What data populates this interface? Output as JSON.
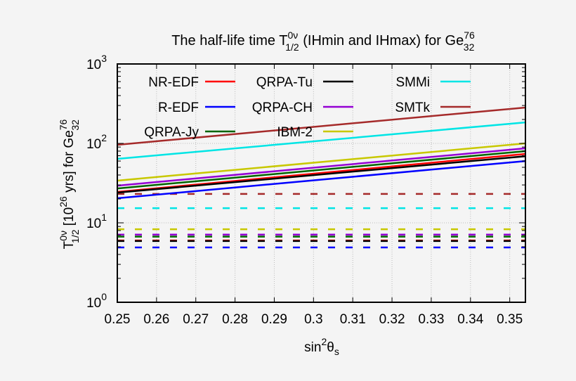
{
  "chart_data": {
    "type": "line",
    "title": {
      "prefix": "The half-life time T",
      "sup1": "0ν",
      "sub1": "1/2",
      "middle": " (IHmin and IHmax) for Ge",
      "sup2": "76",
      "sub2": "32"
    },
    "xlabel": {
      "base": "sin",
      "sup": "2",
      "theta": "θ",
      "sub": "s"
    },
    "ylabel": {
      "t": "T",
      "sup": "0ν",
      "sub": "1/2",
      "mid": " [10",
      "exp": "26",
      "mid2": " yrs] for Ge",
      "sup2": "76",
      "sub2": "32"
    },
    "xlim": [
      0.25,
      0.354
    ],
    "ylim": [
      1,
      1000
    ],
    "yscale": "log",
    "grid": true,
    "x_ticks": [
      "0.25",
      "0.26",
      "0.27",
      "0.28",
      "0.29",
      "0.3",
      "0.31",
      "0.32",
      "0.33",
      "0.34",
      "0.35"
    ],
    "y_ticks": [
      {
        "base": "10",
        "exp": "0"
      },
      {
        "base": "10",
        "exp": "1"
      },
      {
        "base": "10",
        "exp": "2"
      },
      {
        "base": "10",
        "exp": "3"
      }
    ],
    "legend_placement": "top",
    "series": [
      {
        "name": "NR-EDF",
        "color": "#ff0000",
        "ihmax_start": 24.5,
        "ihmax_end": 73.6,
        "ihmin": 6.0
      },
      {
        "name": "R-EDF",
        "color": "#0000ff",
        "ihmax_start": 20.4,
        "ihmax_end": 60,
        "ihmin": 4.9
      },
      {
        "name": "QRPA-Jy",
        "color": "#006400",
        "ihmax_start": 27.1,
        "ihmax_end": 80,
        "ihmin": 6.7
      },
      {
        "name": "QRPA-Tu",
        "color": "#000000",
        "ihmax_start": 24,
        "ihmax_end": 69,
        "ihmin": 5.9
      },
      {
        "name": "QRPA-CH",
        "color": "#9400d3",
        "ihmax_start": 29.4,
        "ihmax_end": 86.7,
        "ihmin": 7.1
      },
      {
        "name": "IBM-2",
        "color": "#c8c800",
        "ihmax_start": 34,
        "ihmax_end": 100,
        "ihmin": 8.3
      },
      {
        "name": "SMMi",
        "color": "#00e5e5",
        "ihmax_start": 63.8,
        "ihmax_end": 184,
        "ihmin": 15.3
      },
      {
        "name": "SMTk",
        "color": "#a52a2a",
        "ihmax_start": 96,
        "ihmax_end": 283,
        "ihmin": 23.1
      }
    ]
  }
}
